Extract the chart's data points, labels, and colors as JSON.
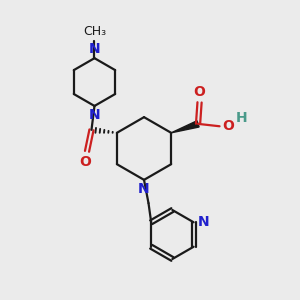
{
  "bg_color": "#ebebeb",
  "bond_color": "#1a1a1a",
  "N_color": "#2020cc",
  "O_color": "#cc2020",
  "H_color": "#4a9a8a",
  "lw": 1.6,
  "fs": 10,
  "xlim": [
    0,
    10
  ],
  "ylim": [
    0,
    10
  ]
}
